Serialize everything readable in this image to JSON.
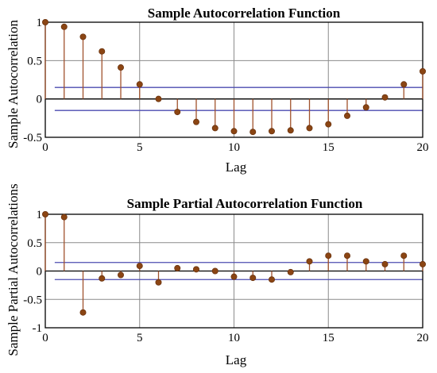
{
  "chart_data": [
    {
      "type": "stem",
      "title": "Sample Autocorrelation Function",
      "xlabel": "Lag",
      "ylabel": "Sample Autocorrelation",
      "xlim": [
        0,
        20
      ],
      "ylim": [
        -0.5,
        1
      ],
      "xticks": [
        "0",
        "5",
        "10",
        "15",
        "20"
      ],
      "yticks": [
        "-0.5",
        "0",
        "0.5",
        "1"
      ],
      "grid": true,
      "confidence_bounds": [
        0.15,
        -0.15
      ],
      "x": [
        0,
        1,
        2,
        3,
        4,
        5,
        6,
        7,
        8,
        9,
        10,
        11,
        12,
        13,
        14,
        15,
        16,
        17,
        18,
        19,
        20
      ],
      "values": [
        1.0,
        0.94,
        0.81,
        0.62,
        0.41,
        0.19,
        0.0,
        -0.17,
        -0.3,
        -0.38,
        -0.42,
        -0.43,
        -0.42,
        -0.41,
        -0.38,
        -0.33,
        -0.22,
        -0.11,
        0.02,
        0.19,
        0.36
      ],
      "colors": {
        "stem": "#a0522d",
        "marker": "#8b4513",
        "bounds": "#4b4bb0",
        "axis": "#000000"
      }
    },
    {
      "type": "stem",
      "title": "Sample Partial Autocorrelation Function",
      "xlabel": "Lag",
      "ylabel": "Sample Partial Autocorrelations",
      "xlim": [
        0,
        20
      ],
      "ylim": [
        -1,
        1
      ],
      "xticks": [
        "0",
        "5",
        "10",
        "15",
        "20"
      ],
      "yticks": [
        "-1",
        "-0.5",
        "0",
        "0.5",
        "1"
      ],
      "grid": true,
      "confidence_bounds": [
        0.15,
        -0.15
      ],
      "x": [
        0,
        1,
        2,
        3,
        4,
        5,
        6,
        7,
        8,
        9,
        10,
        11,
        12,
        13,
        14,
        15,
        16,
        17,
        18,
        19,
        20
      ],
      "values": [
        1.0,
        0.95,
        -0.73,
        -0.13,
        -0.07,
        0.09,
        -0.2,
        0.05,
        0.03,
        0.0,
        -0.1,
        -0.12,
        -0.15,
        -0.02,
        0.17,
        0.27,
        0.27,
        0.17,
        0.12,
        0.27,
        0.12
      ],
      "colors": {
        "stem": "#a0522d",
        "marker": "#8b4513",
        "bounds": "#4b4bb0",
        "axis": "#000000"
      }
    }
  ]
}
